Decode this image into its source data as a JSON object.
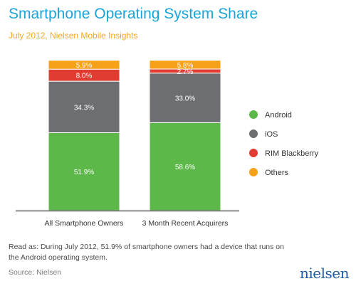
{
  "header": {
    "title": "Smartphone Operating System Share",
    "subtitle": "July 2012, Nielsen Mobile Insights"
  },
  "footer": {
    "note": "Read as: During July 2012, 51.9% of smartphone owners had a device that runs on the Android operating system.",
    "source": "Source: Nielsen",
    "logo_text": "nielsen"
  },
  "chart_data": {
    "type": "bar",
    "stacked": true,
    "categories": [
      "All Smartphone Owners",
      "3 Month Recent Acquirers"
    ],
    "series": [
      {
        "name": "Android",
        "values": [
          51.9,
          58.6
        ],
        "labels": [
          "51.9%",
          "58.6%"
        ],
        "color": "#5cb848"
      },
      {
        "name": "iOS",
        "values": [
          34.3,
          33.0
        ],
        "labels": [
          "34.3%",
          "33.0%"
        ],
        "color": "#6d6e71"
      },
      {
        "name": "RIM Blackberry",
        "values": [
          8.0,
          2.7
        ],
        "labels": [
          "8.0%",
          "2.7%"
        ],
        "color": "#e03c31"
      },
      {
        "name": "Others",
        "values": [
          5.9,
          5.8
        ],
        "labels": [
          "5.9%",
          "5.8%"
        ],
        "color": "#f7a11a"
      }
    ],
    "ylim": [
      0,
      100
    ],
    "legend_position": "right",
    "grid": false
  }
}
